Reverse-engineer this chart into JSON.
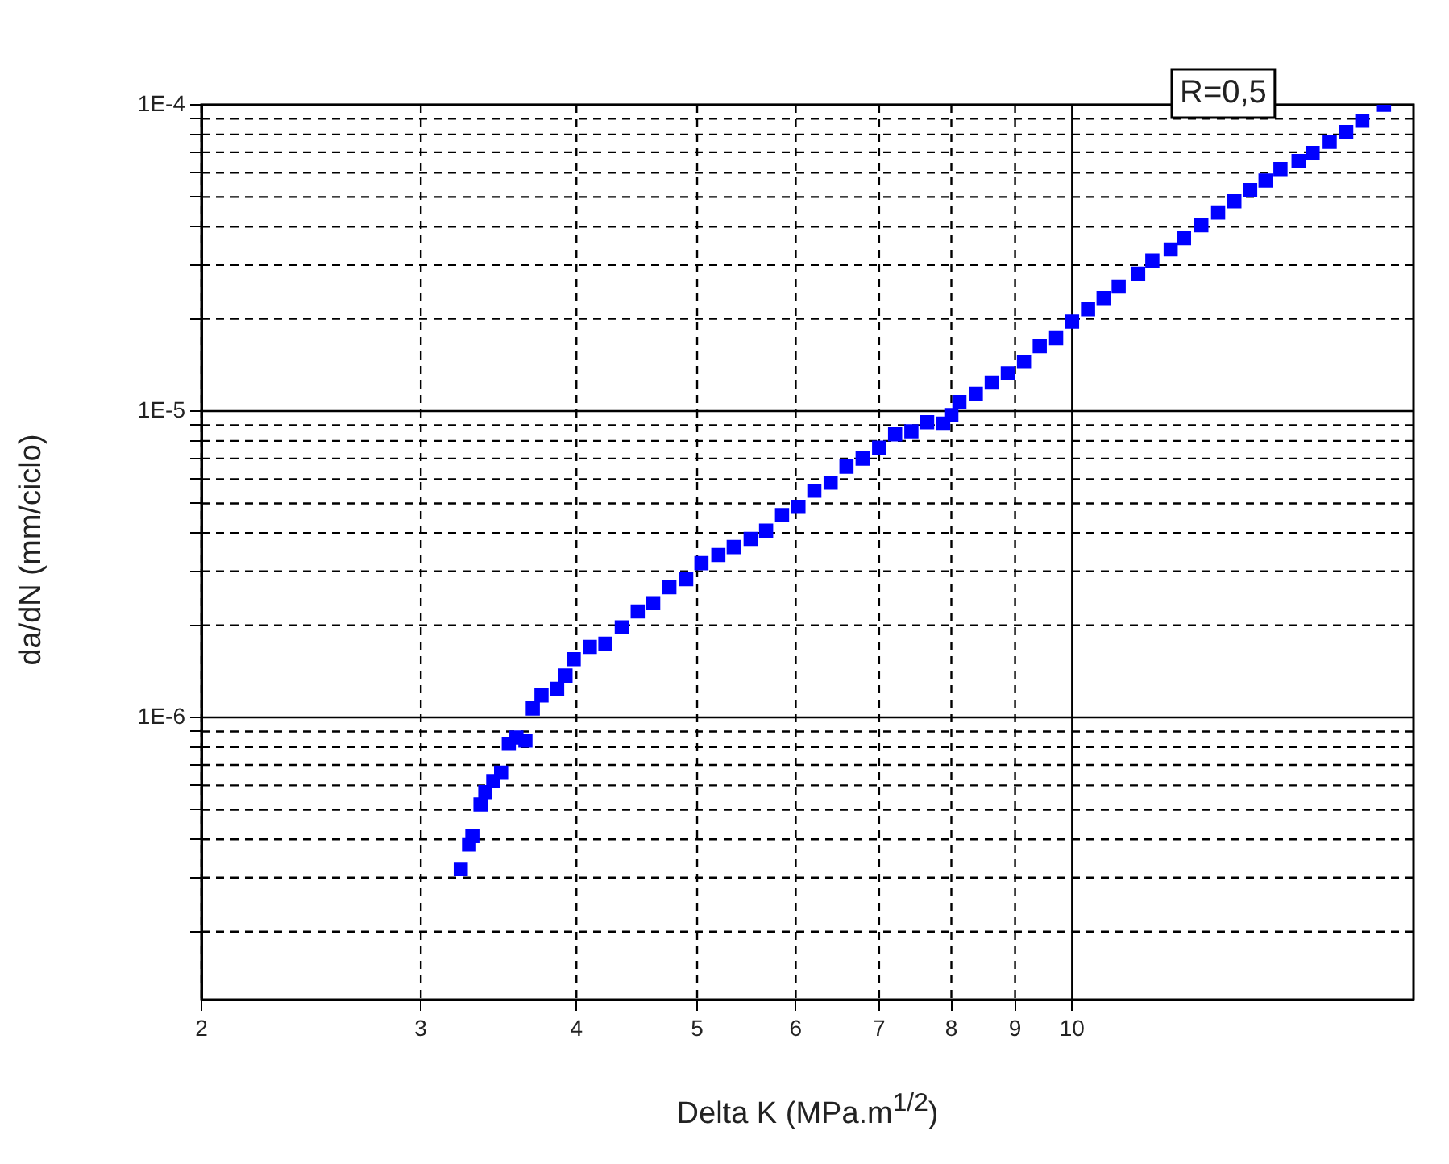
{
  "chart_data": {
    "type": "scatter",
    "xlabel": "Delta K (MPa.m$^{1/2}$)",
    "ylabel": "da/dN (mm/ciclo)",
    "annotations": [
      "R=0,5"
    ],
    "log": "xy",
    "grid": true,
    "marker": "square",
    "xlim": [
      2,
      18.8
    ],
    "xticks": [
      2,
      3,
      4,
      5,
      6,
      7,
      8,
      9,
      10
    ],
    "ylim": [
      1.2e-07,
      0.0001
    ],
    "yticks": [
      {
        "value": 2e-07,
        "label": null
      },
      {
        "value": 3e-07,
        "label": null
      },
      {
        "value": 4e-07,
        "label": null
      },
      {
        "value": 5e-07,
        "label": null
      },
      {
        "value": 6e-07,
        "label": null
      },
      {
        "value": 7e-07,
        "label": null
      },
      {
        "value": 8e-07,
        "label": null
      },
      {
        "value": 9e-07,
        "label": null
      },
      {
        "value": 1e-06,
        "label": "1E-6"
      },
      {
        "value": 2e-06,
        "label": null
      },
      {
        "value": 3e-06,
        "label": null
      },
      {
        "value": 4e-06,
        "label": null
      },
      {
        "value": 5e-06,
        "label": null
      },
      {
        "value": 6e-06,
        "label": null
      },
      {
        "value": 7e-06,
        "label": null
      },
      {
        "value": 8e-06,
        "label": null
      },
      {
        "value": 9e-06,
        "label": null
      },
      {
        "value": 1e-05,
        "label": "1E-5"
      },
      {
        "value": 2e-05,
        "label": null
      },
      {
        "value": 3e-05,
        "label": null
      },
      {
        "value": 4e-05,
        "label": null
      },
      {
        "value": 5e-05,
        "label": null
      },
      {
        "value": 6e-05,
        "label": null
      },
      {
        "value": 7e-05,
        "label": null
      },
      {
        "value": 8e-05,
        "label": null
      },
      {
        "value": 9e-05,
        "label": null
      },
      {
        "value": 0.0001,
        "label": "1E-4"
      }
    ],
    "series": [
      {
        "color": "#0000ff",
        "x": [
          3.23,
          3.28,
          3.3,
          3.35,
          3.38,
          3.43,
          3.48,
          3.53,
          3.58,
          3.64,
          3.69,
          3.75,
          3.86,
          3.92,
          3.98,
          4.1,
          4.22,
          4.35,
          4.48,
          4.61,
          4.75,
          4.9,
          5.04,
          5.2,
          5.35,
          5.52,
          5.68,
          5.85,
          6.03,
          6.21,
          6.4,
          6.59,
          6.79,
          7.0,
          7.21,
          7.43,
          7.65,
          7.88,
          8.0,
          8.12,
          8.37,
          8.62,
          8.88,
          9.15,
          9.42,
          9.71,
          10.0,
          10.3,
          10.6,
          10.9,
          11.3,
          11.6,
          12.0,
          12.3,
          12.7,
          13.1,
          13.5,
          13.9,
          14.3,
          14.7,
          15.2,
          15.6,
          16.1,
          16.6,
          17.1,
          17.8
        ],
        "values": [
          3.2e-07,
          3.85e-07,
          4.1e-07,
          5.2e-07,
          5.7e-07,
          6.2e-07,
          6.6e-07,
          8.2e-07,
          8.6e-07,
          8.4e-07,
          1.07e-06,
          1.18e-06,
          1.24e-06,
          1.37e-06,
          1.55e-06,
          1.7e-06,
          1.74e-06,
          1.97e-06,
          2.22e-06,
          2.36e-06,
          2.66e-06,
          2.83e-06,
          3.19e-06,
          3.39e-06,
          3.6e-06,
          3.83e-06,
          4.07e-06,
          4.58e-06,
          4.87e-06,
          5.5e-06,
          5.84e-06,
          6.59e-06,
          7e-06,
          7.6e-06,
          8.4e-06,
          8.6e-06,
          9.2e-06,
          9.1e-06,
          9.7e-06,
          1.07e-05,
          1.14e-05,
          1.24e-05,
          1.33e-05,
          1.45e-05,
          1.63e-05,
          1.73e-05,
          1.96e-05,
          2.15e-05,
          2.34e-05,
          2.55e-05,
          2.81e-05,
          3.1e-05,
          3.37e-05,
          3.67e-05,
          4.04e-05,
          4.45e-05,
          4.84e-05,
          5.27e-05,
          5.66e-05,
          6.17e-05,
          6.55e-05,
          6.96e-05,
          7.57e-05,
          8.15e-05,
          8.87e-05,
          0.0001
        ]
      }
    ]
  }
}
